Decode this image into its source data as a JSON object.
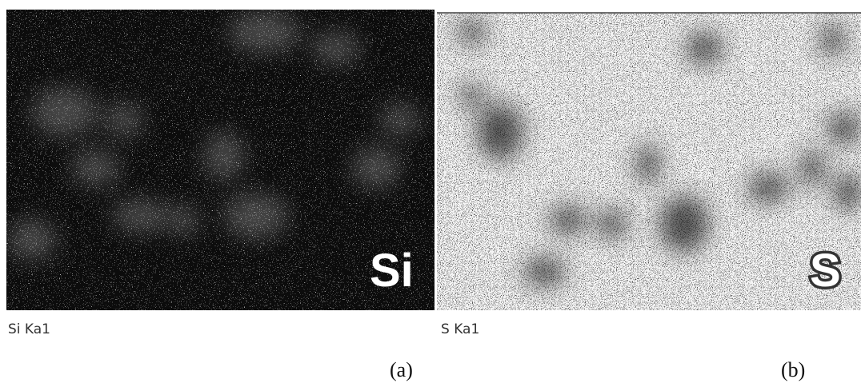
{
  "panels": [
    {
      "element_label": "Si",
      "caption": "Si Ka1",
      "tag": "(a)"
    },
    {
      "element_label": "S",
      "caption": "S Ka1",
      "tag": "(b)"
    }
  ]
}
